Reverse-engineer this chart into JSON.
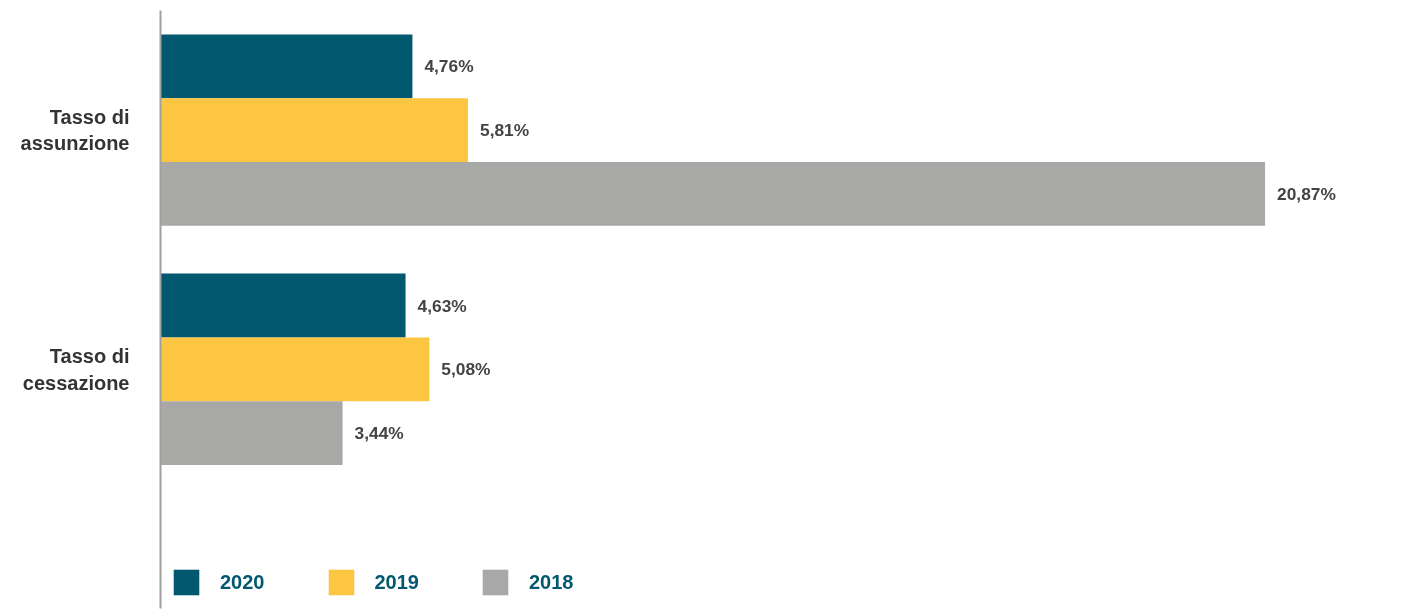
{
  "chart_data": {
    "type": "bar",
    "orientation": "horizontal",
    "categories": [
      "Tasso di assunzione",
      "Tasso di cessazione"
    ],
    "series": [
      {
        "name": "2020",
        "color": "#02596f",
        "values": [
          4.76,
          4.63
        ],
        "value_labels": [
          "4,76%",
          "4,63%"
        ]
      },
      {
        "name": "2019",
        "color": "#fcc643",
        "values": [
          5.81,
          5.08
        ],
        "value_labels": [
          "5,81%",
          "5,08%"
        ]
      },
      {
        "name": "2018",
        "color": "#a8a8a7",
        "values": [
          20.87,
          3.44
        ],
        "value_labels": [
          "20,87%",
          "3,44%"
        ]
      }
    ],
    "legend": "bottom left",
    "grid": false
  }
}
